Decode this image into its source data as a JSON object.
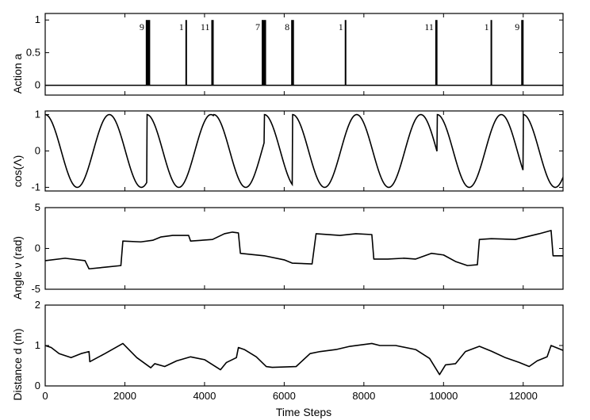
{
  "figure": {
    "xlabel": "Time Steps",
    "x_ticks": [
      0,
      2000,
      4000,
      6000,
      8000,
      10000,
      12000
    ],
    "x_tick_labels": [
      "0",
      "2000",
      "4000",
      "6000",
      "8000",
      "10000",
      "12000"
    ],
    "xlim": [
      0,
      13000
    ]
  },
  "colors": {
    "line": "#000000",
    "background": "#ffffff"
  },
  "chart_data": [
    {
      "type": "bar",
      "ylabel": "Action a",
      "ylim": [
        -0.15,
        1.1
      ],
      "y_ticks": [
        0,
        0.5,
        1
      ],
      "y_tick_labels": [
        "0",
        "0.5",
        "1"
      ],
      "pulses": [
        {
          "x": 2580,
          "width": 110,
          "value": 1,
          "label": "9"
        },
        {
          "x": 3540,
          "width": 40,
          "value": 1,
          "label": "1"
        },
        {
          "x": 4200,
          "width": 60,
          "value": 1,
          "label": "11"
        },
        {
          "x": 5490,
          "width": 110,
          "value": 1,
          "label": "7"
        },
        {
          "x": 6210,
          "width": 70,
          "value": 1,
          "label": "8"
        },
        {
          "x": 7540,
          "width": 40,
          "value": 1,
          "label": "1"
        },
        {
          "x": 9820,
          "width": 55,
          "value": 1,
          "label": "11"
        },
        {
          "x": 11200,
          "width": 40,
          "value": 1,
          "label": "1"
        },
        {
          "x": 11980,
          "width": 60,
          "value": 1,
          "label": "9"
        }
      ]
    },
    {
      "type": "line",
      "ylabel": "cos(Λ)",
      "ylim": [
        -1.1,
        1.1
      ],
      "y_ticks": [
        -1,
        0,
        1
      ],
      "y_tick_labels": [
        "-1",
        "0",
        "1"
      ],
      "period": 1610,
      "phase_resets": [
        0,
        2550,
        4230,
        5500,
        6210,
        9840,
        12000
      ]
    },
    {
      "type": "line",
      "ylabel": "Angle ν (rad)",
      "ylim": [
        -5,
        5
      ],
      "y_ticks": [
        -5,
        0,
        5
      ],
      "y_tick_labels": [
        "-5",
        "0",
        "5"
      ],
      "x": [
        0,
        500,
        1000,
        1100,
        1500,
        1900,
        1950,
        2400,
        2700,
        2900,
        3200,
        3600,
        3650,
        4200,
        4500,
        4700,
        4850,
        4900,
        5500,
        6000,
        6200,
        6700,
        6800,
        7400,
        7800,
        8200,
        8250,
        8600,
        9000,
        9300,
        9700,
        10000,
        10300,
        10600,
        10850,
        10900,
        11200,
        11800,
        12400,
        12700,
        12750,
        13000
      ],
      "y": [
        -1.5,
        -1.2,
        -1.5,
        -2.5,
        -2.3,
        -2.1,
        0.9,
        0.8,
        1.0,
        1.4,
        1.6,
        1.6,
        0.9,
        1.1,
        1.8,
        2.0,
        1.9,
        -0.6,
        -0.9,
        -1.4,
        -1.8,
        -1.9,
        1.8,
        1.6,
        1.8,
        1.7,
        -1.3,
        -1.3,
        -1.2,
        -1.3,
        -0.6,
        -0.8,
        -1.6,
        -2.1,
        -2.0,
        1.1,
        1.2,
        1.1,
        1.8,
        2.2,
        -0.9,
        -0.9
      ]
    },
    {
      "type": "line",
      "ylabel": "Distance d (m)",
      "ylim": [
        0,
        2
      ],
      "y_ticks": [
        0,
        1,
        2
      ],
      "y_tick_labels": [
        "0",
        "1",
        "2"
      ],
      "x": [
        0,
        150,
        350,
        650,
        900,
        1100,
        1120,
        1500,
        1950,
        2300,
        2650,
        2750,
        3000,
        3300,
        3650,
        4000,
        4400,
        4550,
        4800,
        4850,
        5000,
        5300,
        5550,
        5700,
        6000,
        6300,
        6650,
        6900,
        7300,
        7650,
        8200,
        8400,
        8800,
        9300,
        9650,
        9900,
        10050,
        10300,
        10550,
        10900,
        11200,
        11550,
        11900,
        12150,
        12350,
        12600,
        12700,
        13000
      ],
      "y": [
        1.0,
        0.95,
        0.8,
        0.7,
        0.8,
        0.85,
        0.6,
        0.8,
        1.05,
        0.7,
        0.45,
        0.55,
        0.48,
        0.62,
        0.72,
        0.65,
        0.4,
        0.58,
        0.7,
        0.95,
        0.9,
        0.72,
        0.48,
        0.46,
        0.47,
        0.48,
        0.8,
        0.85,
        0.9,
        0.98,
        1.05,
        1.0,
        1.0,
        0.9,
        0.68,
        0.28,
        0.52,
        0.55,
        0.85,
        0.98,
        0.86,
        0.7,
        0.58,
        0.48,
        0.62,
        0.72,
        1.0,
        0.88
      ]
    }
  ]
}
